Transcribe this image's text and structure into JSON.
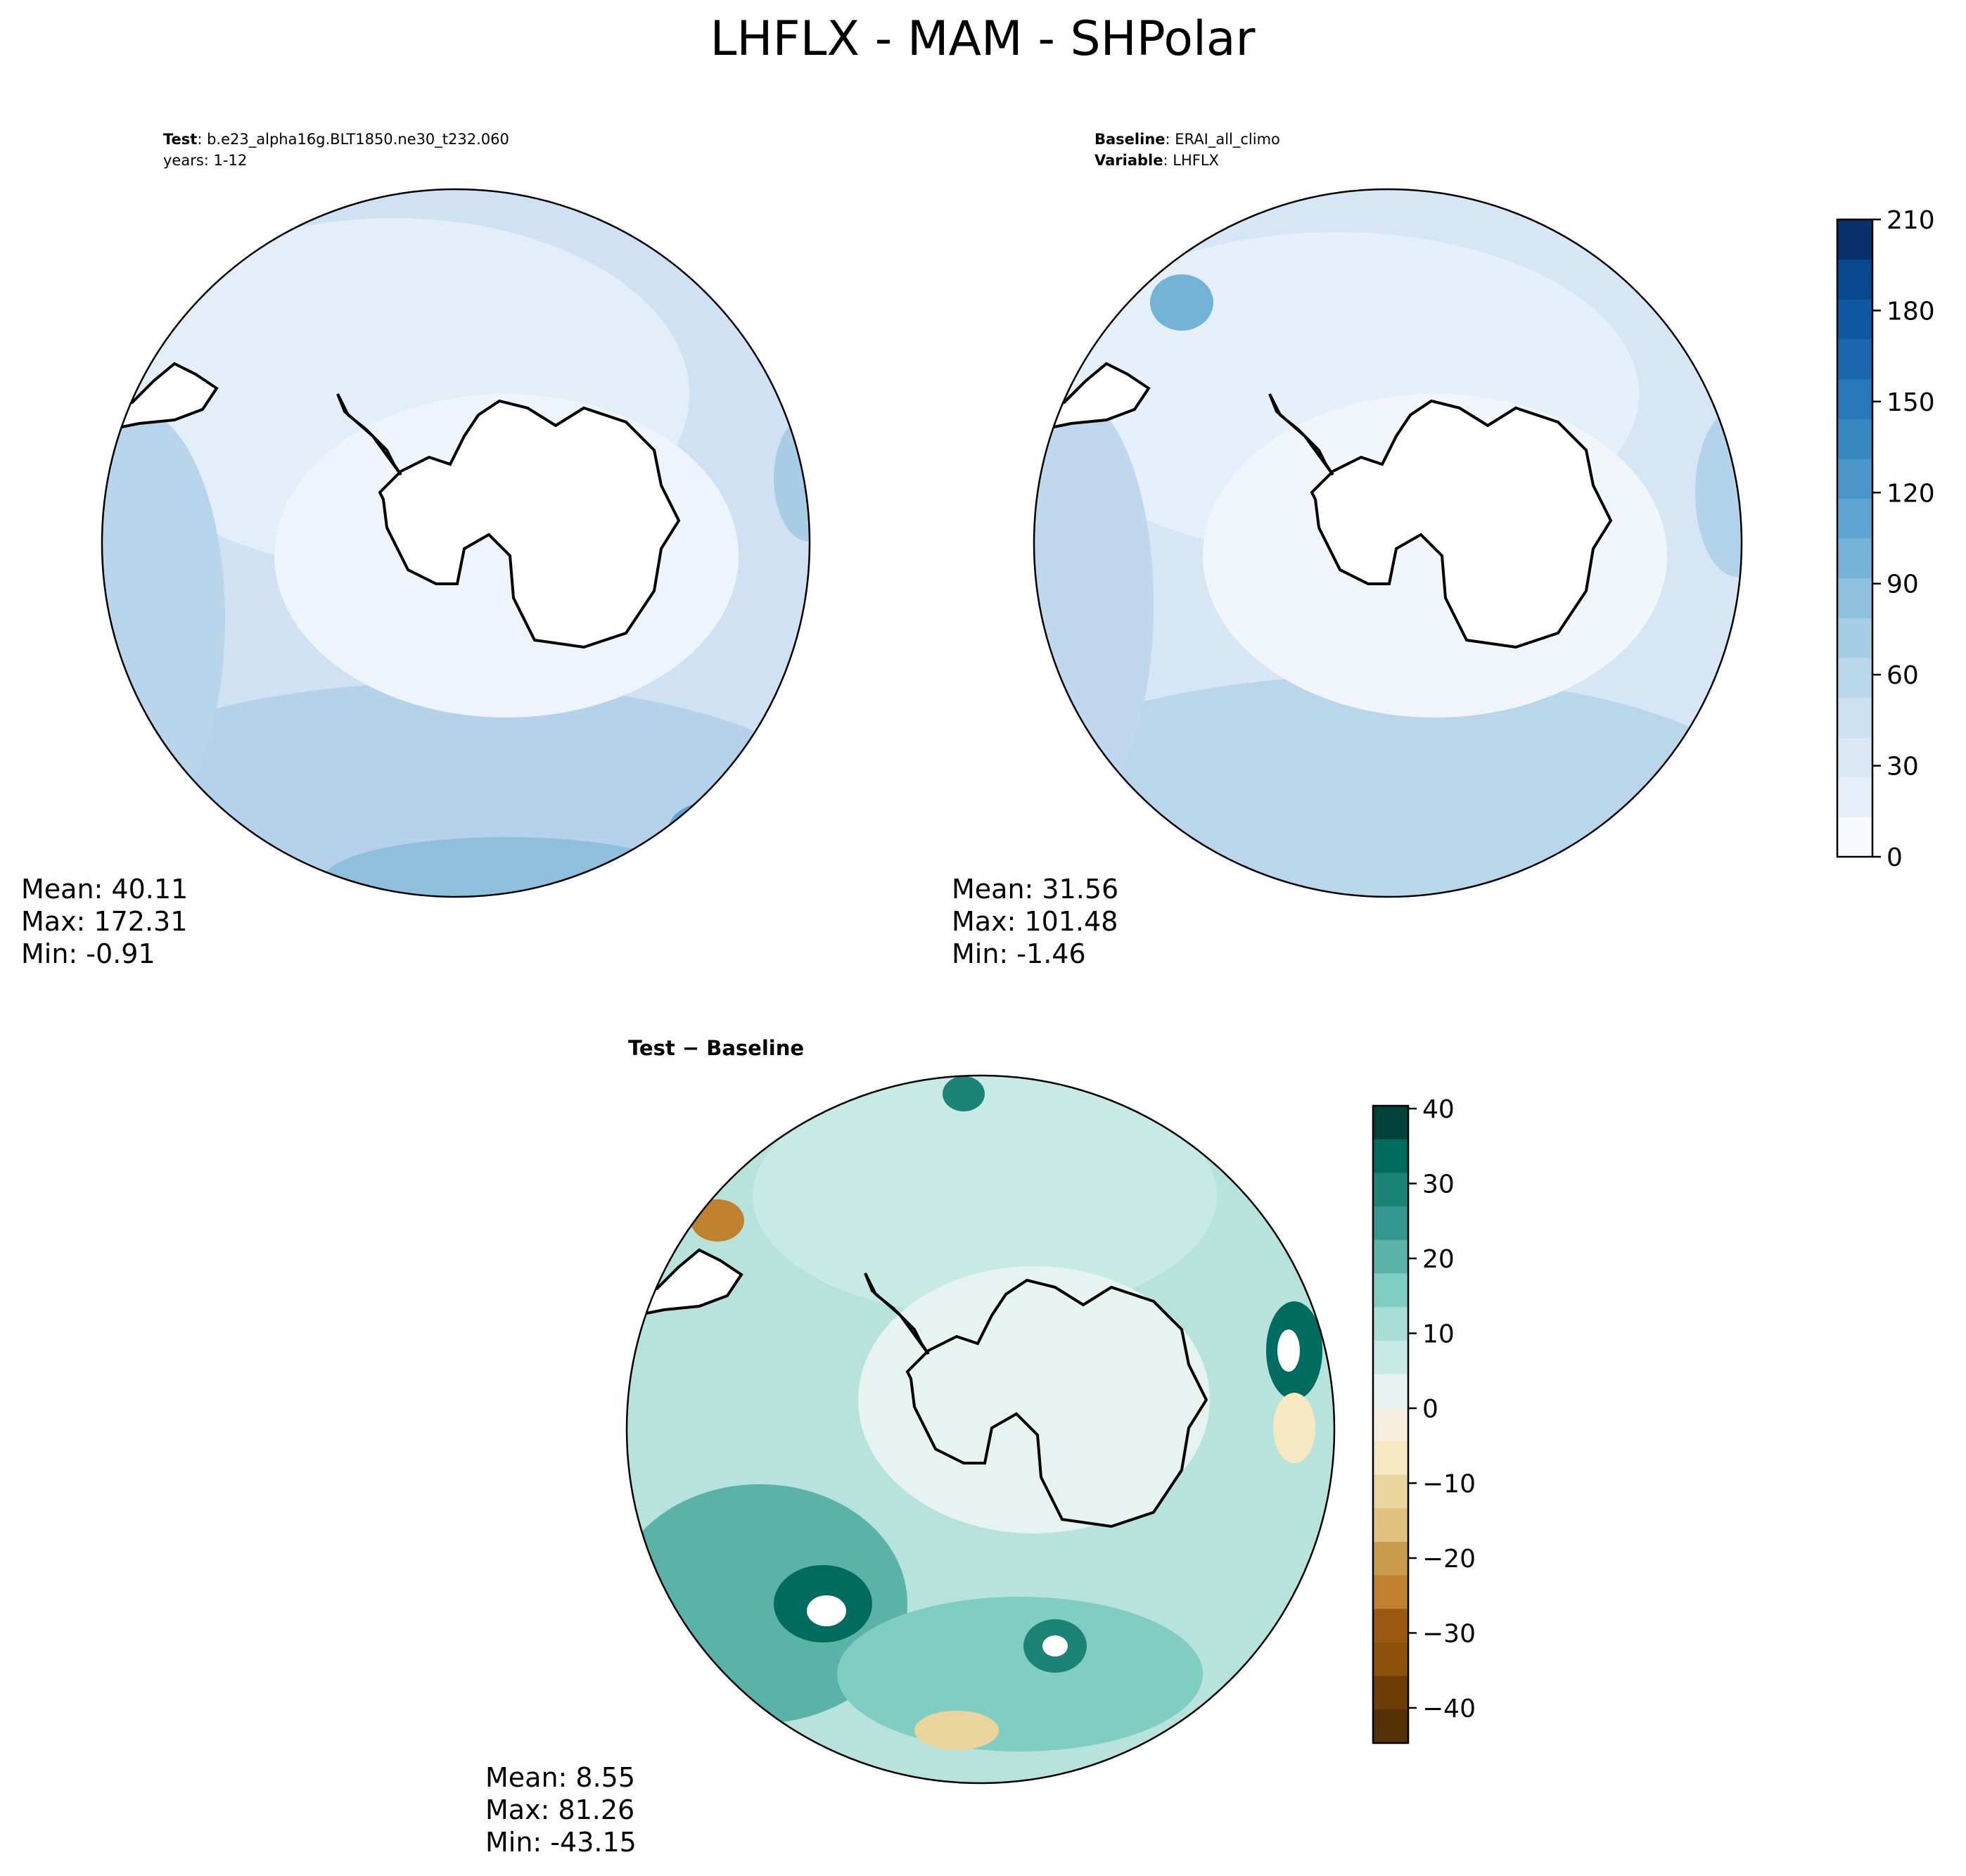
{
  "title": "LHFLX - MAM - SHPolar",
  "panels": {
    "test": {
      "key": "Test",
      "value": "b.e23_alpha16g.BLT1850.ne30_t232.060",
      "years": "years: 1-12",
      "mean": "Mean: 40.11",
      "max": "Max: 172.31",
      "min": "Min: -0.91"
    },
    "baseline": {
      "key": "Baseline",
      "value": "ERAI_all_climo",
      "var_key": "Variable",
      "var_value": "LHFLX",
      "mean": "Mean: 31.56",
      "max": "Max: 101.48",
      "min": "Min: -1.46"
    },
    "diff": {
      "title": "Test − Baseline",
      "mean": "Mean:  8.55",
      "max": "Max: 81.26",
      "min": "Min: -43.15"
    }
  },
  "colorbars": {
    "main": {
      "ticks": [
        "0",
        "30",
        "60",
        "90",
        "120",
        "150",
        "180",
        "210"
      ],
      "colors": [
        "#f6faff",
        "#e6f0fa",
        "#dae8f6",
        "#cde0f1",
        "#bad6eb",
        "#a5cde3",
        "#8ebfdd",
        "#75b2d8",
        "#5ea5d1",
        "#4a96c9",
        "#3787c0",
        "#2877b8",
        "#1a67ae",
        "#0e58a2",
        "#08488e",
        "#08306b"
      ]
    },
    "diff": {
      "ticks": [
        "40",
        "30",
        "20",
        "10",
        "0",
        "−10",
        "−20",
        "−30",
        "−40"
      ],
      "colors": [
        "#00423a",
        "#006b5f",
        "#1d8377",
        "#35978f",
        "#5ab2a8",
        "#80cdc1",
        "#a7ded6",
        "#c7eae5",
        "#e6f3f1",
        "#f6efdf",
        "#f6e8c3",
        "#ebd59f",
        "#dfc27d",
        "#c99b4f",
        "#bf812d",
        "#9b5811",
        "#8c510a",
        "#6d3d07",
        "#543005"
      ]
    }
  },
  "map_colors": {
    "land": "#ffffff",
    "ocean_main": "#cfe1f2",
    "ocean_diff": "#b8e3dc",
    "coast": "#000000"
  }
}
